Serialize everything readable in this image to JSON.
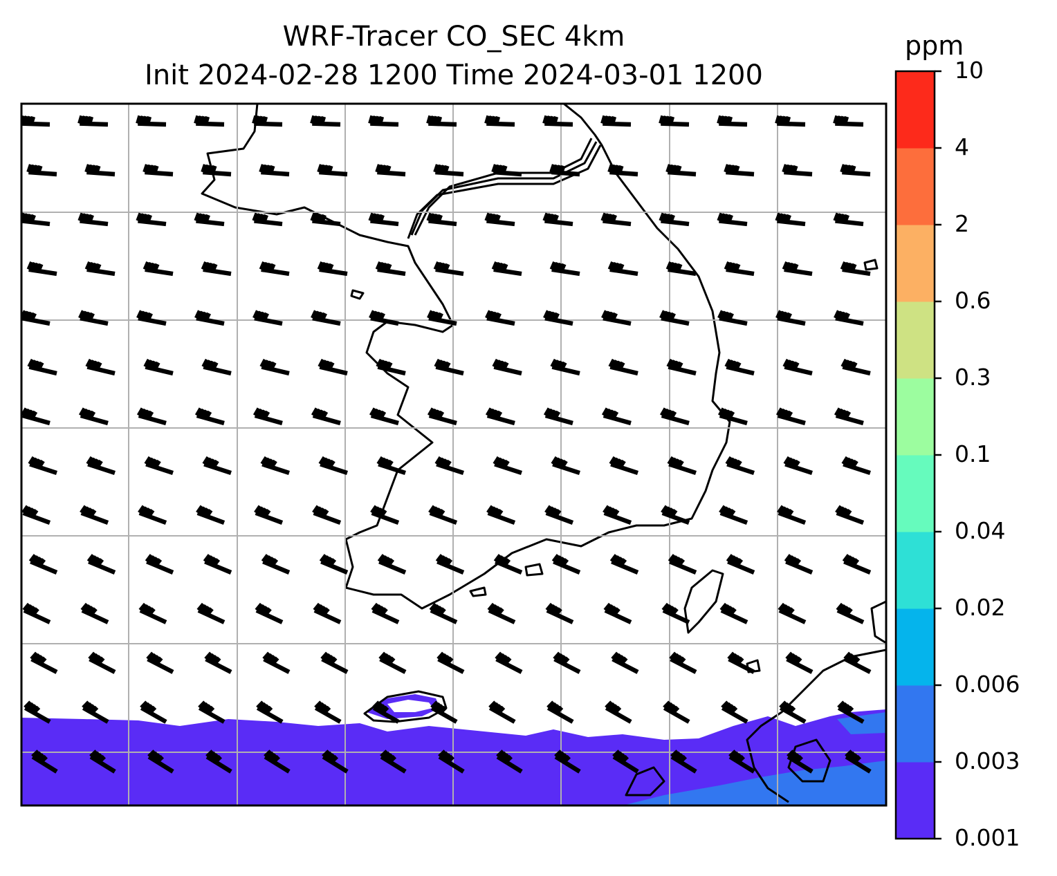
{
  "title": {
    "line1": "WRF-Tracer CO_SEC 4km",
    "line2": "Init 2024-02-28 1200 Time 2024-03-01 1200"
  },
  "colorbar": {
    "unit": "ppm",
    "levels": [
      "0.001",
      "0.003",
      "0.006",
      "0.02",
      "0.04",
      "0.1",
      "0.3",
      "0.6",
      "2",
      "4",
      "10"
    ],
    "colors": [
      "#5a2cf6",
      "#3277f0",
      "#05b4ec",
      "#2ee0d6",
      "#66fbbd",
      "#9cfd9f",
      "#cee283",
      "#fcb063",
      "#fd6e3c",
      "#fd2a1b"
    ]
  },
  "map": {
    "grid": true,
    "wind_barbs": "northwesterly",
    "shaded_field_colors": {
      "lowest": "#5a2cf6",
      "second": "#3277f0"
    }
  }
}
